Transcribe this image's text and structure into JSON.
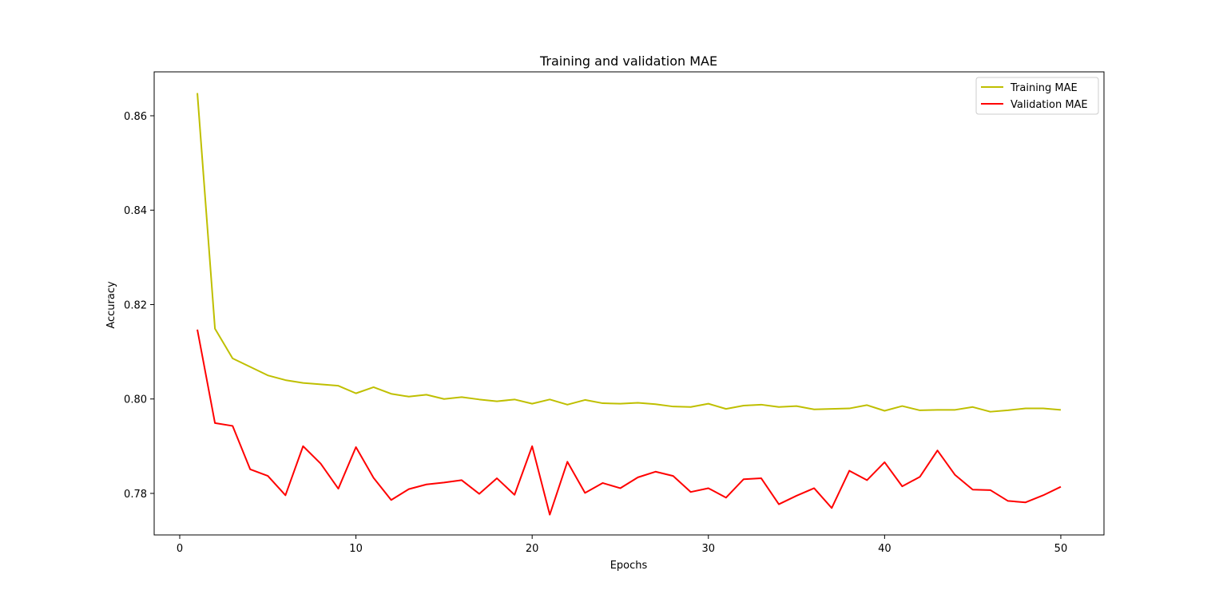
{
  "chart_data": {
    "type": "line",
    "title": "Training and validation MAE",
    "xlabel": "Epochs",
    "ylabel": "Accuracy",
    "xlim": [
      -1.45,
      52.45
    ],
    "ylim": [
      0.7712,
      0.8693
    ],
    "xticks": [
      0,
      10,
      20,
      30,
      40,
      50
    ],
    "yticks": [
      0.78,
      0.8,
      0.82,
      0.84,
      0.86
    ],
    "xtick_labels": [
      "0",
      "10",
      "20",
      "30",
      "40",
      "50"
    ],
    "ytick_labels": [
      "0.78",
      "0.80",
      "0.82",
      "0.84",
      "0.86"
    ],
    "grid": false,
    "legend_position": "top-right",
    "x": [
      1,
      2,
      3,
      4,
      5,
      6,
      7,
      8,
      9,
      10,
      11,
      12,
      13,
      14,
      15,
      16,
      17,
      18,
      19,
      20,
      21,
      22,
      23,
      24,
      25,
      26,
      27,
      28,
      29,
      30,
      31,
      32,
      33,
      34,
      35,
      36,
      37,
      38,
      39,
      40,
      41,
      42,
      43,
      44,
      45,
      46,
      47,
      48,
      49,
      50
    ],
    "series": [
      {
        "name": "Training MAE",
        "color": "#bfbf00",
        "values": [
          0.8648,
          0.8149,
          0.8086,
          0.8068,
          0.805,
          0.804,
          0.8034,
          0.8031,
          0.8028,
          0.8012,
          0.8025,
          0.8011,
          0.8005,
          0.8009,
          0.8,
          0.8004,
          0.7999,
          0.7995,
          0.7999,
          0.799,
          0.7999,
          0.7988,
          0.7998,
          0.7991,
          0.799,
          0.7992,
          0.7989,
          0.7984,
          0.7983,
          0.799,
          0.7979,
          0.7986,
          0.7988,
          0.7983,
          0.7985,
          0.7978,
          0.7979,
          0.798,
          0.7987,
          0.7975,
          0.7985,
          0.7976,
          0.7977,
          0.7977,
          0.7983,
          0.7973,
          0.7976,
          0.798,
          0.798,
          0.7977
        ]
      },
      {
        "name": "Validation MAE",
        "color": "#ff0000",
        "values": [
          0.8147,
          0.7949,
          0.7943,
          0.7851,
          0.7837,
          0.7796,
          0.79,
          0.7863,
          0.781,
          0.7898,
          0.7833,
          0.7786,
          0.7809,
          0.7819,
          0.7823,
          0.7828,
          0.7799,
          0.7832,
          0.7797,
          0.79,
          0.7755,
          0.7867,
          0.7801,
          0.7822,
          0.7811,
          0.7834,
          0.7846,
          0.7837,
          0.7803,
          0.7811,
          0.7791,
          0.783,
          0.7832,
          0.7777,
          0.7795,
          0.7811,
          0.7769,
          0.7848,
          0.7828,
          0.7866,
          0.7815,
          0.7835,
          0.7891,
          0.7839,
          0.7808,
          0.7807,
          0.7784,
          0.7781,
          0.7796,
          0.7814
        ]
      }
    ]
  }
}
